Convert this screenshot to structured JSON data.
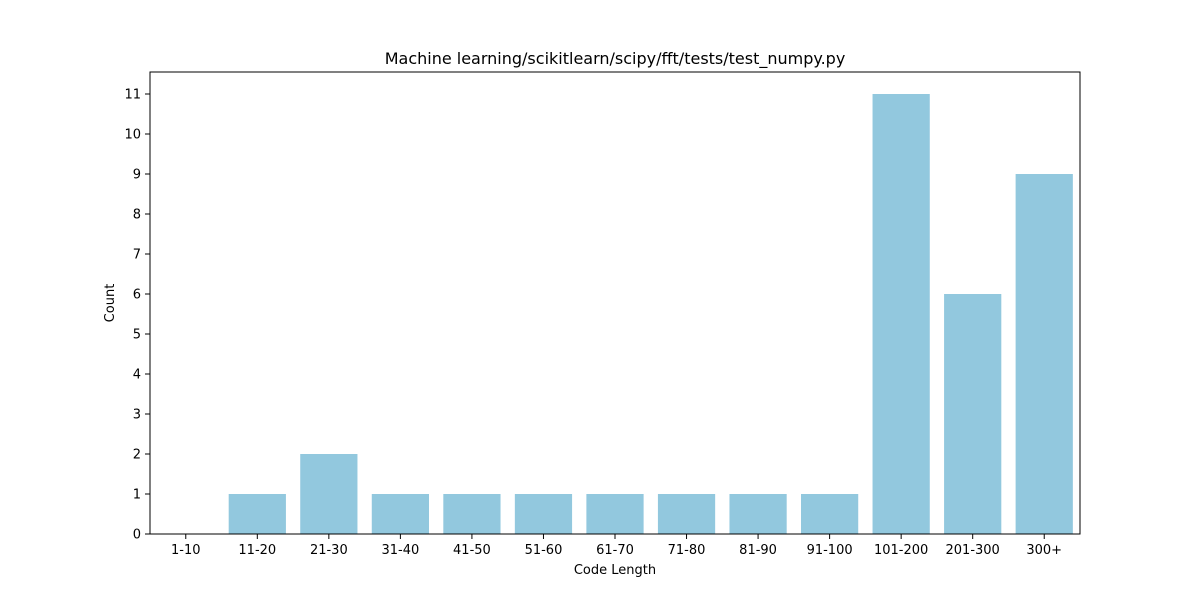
{
  "chart_data": {
    "type": "bar",
    "title": "Machine learning/scikitlearn/scipy/fft/tests/test_numpy.py",
    "xlabel": "Code Length",
    "ylabel": "Count",
    "categories": [
      "1-10",
      "11-20",
      "21-30",
      "31-40",
      "41-50",
      "51-60",
      "61-70",
      "71-80",
      "81-90",
      "91-100",
      "101-200",
      "201-300",
      "300+"
    ],
    "values": [
      0,
      1,
      2,
      1,
      1,
      1,
      1,
      1,
      1,
      1,
      11,
      6,
      9
    ],
    "ylim": [
      0,
      11.55
    ],
    "yticks": [
      0,
      1,
      2,
      3,
      4,
      5,
      6,
      7,
      8,
      9,
      10,
      11
    ],
    "grid": false,
    "bar_color": "#92c8de"
  }
}
